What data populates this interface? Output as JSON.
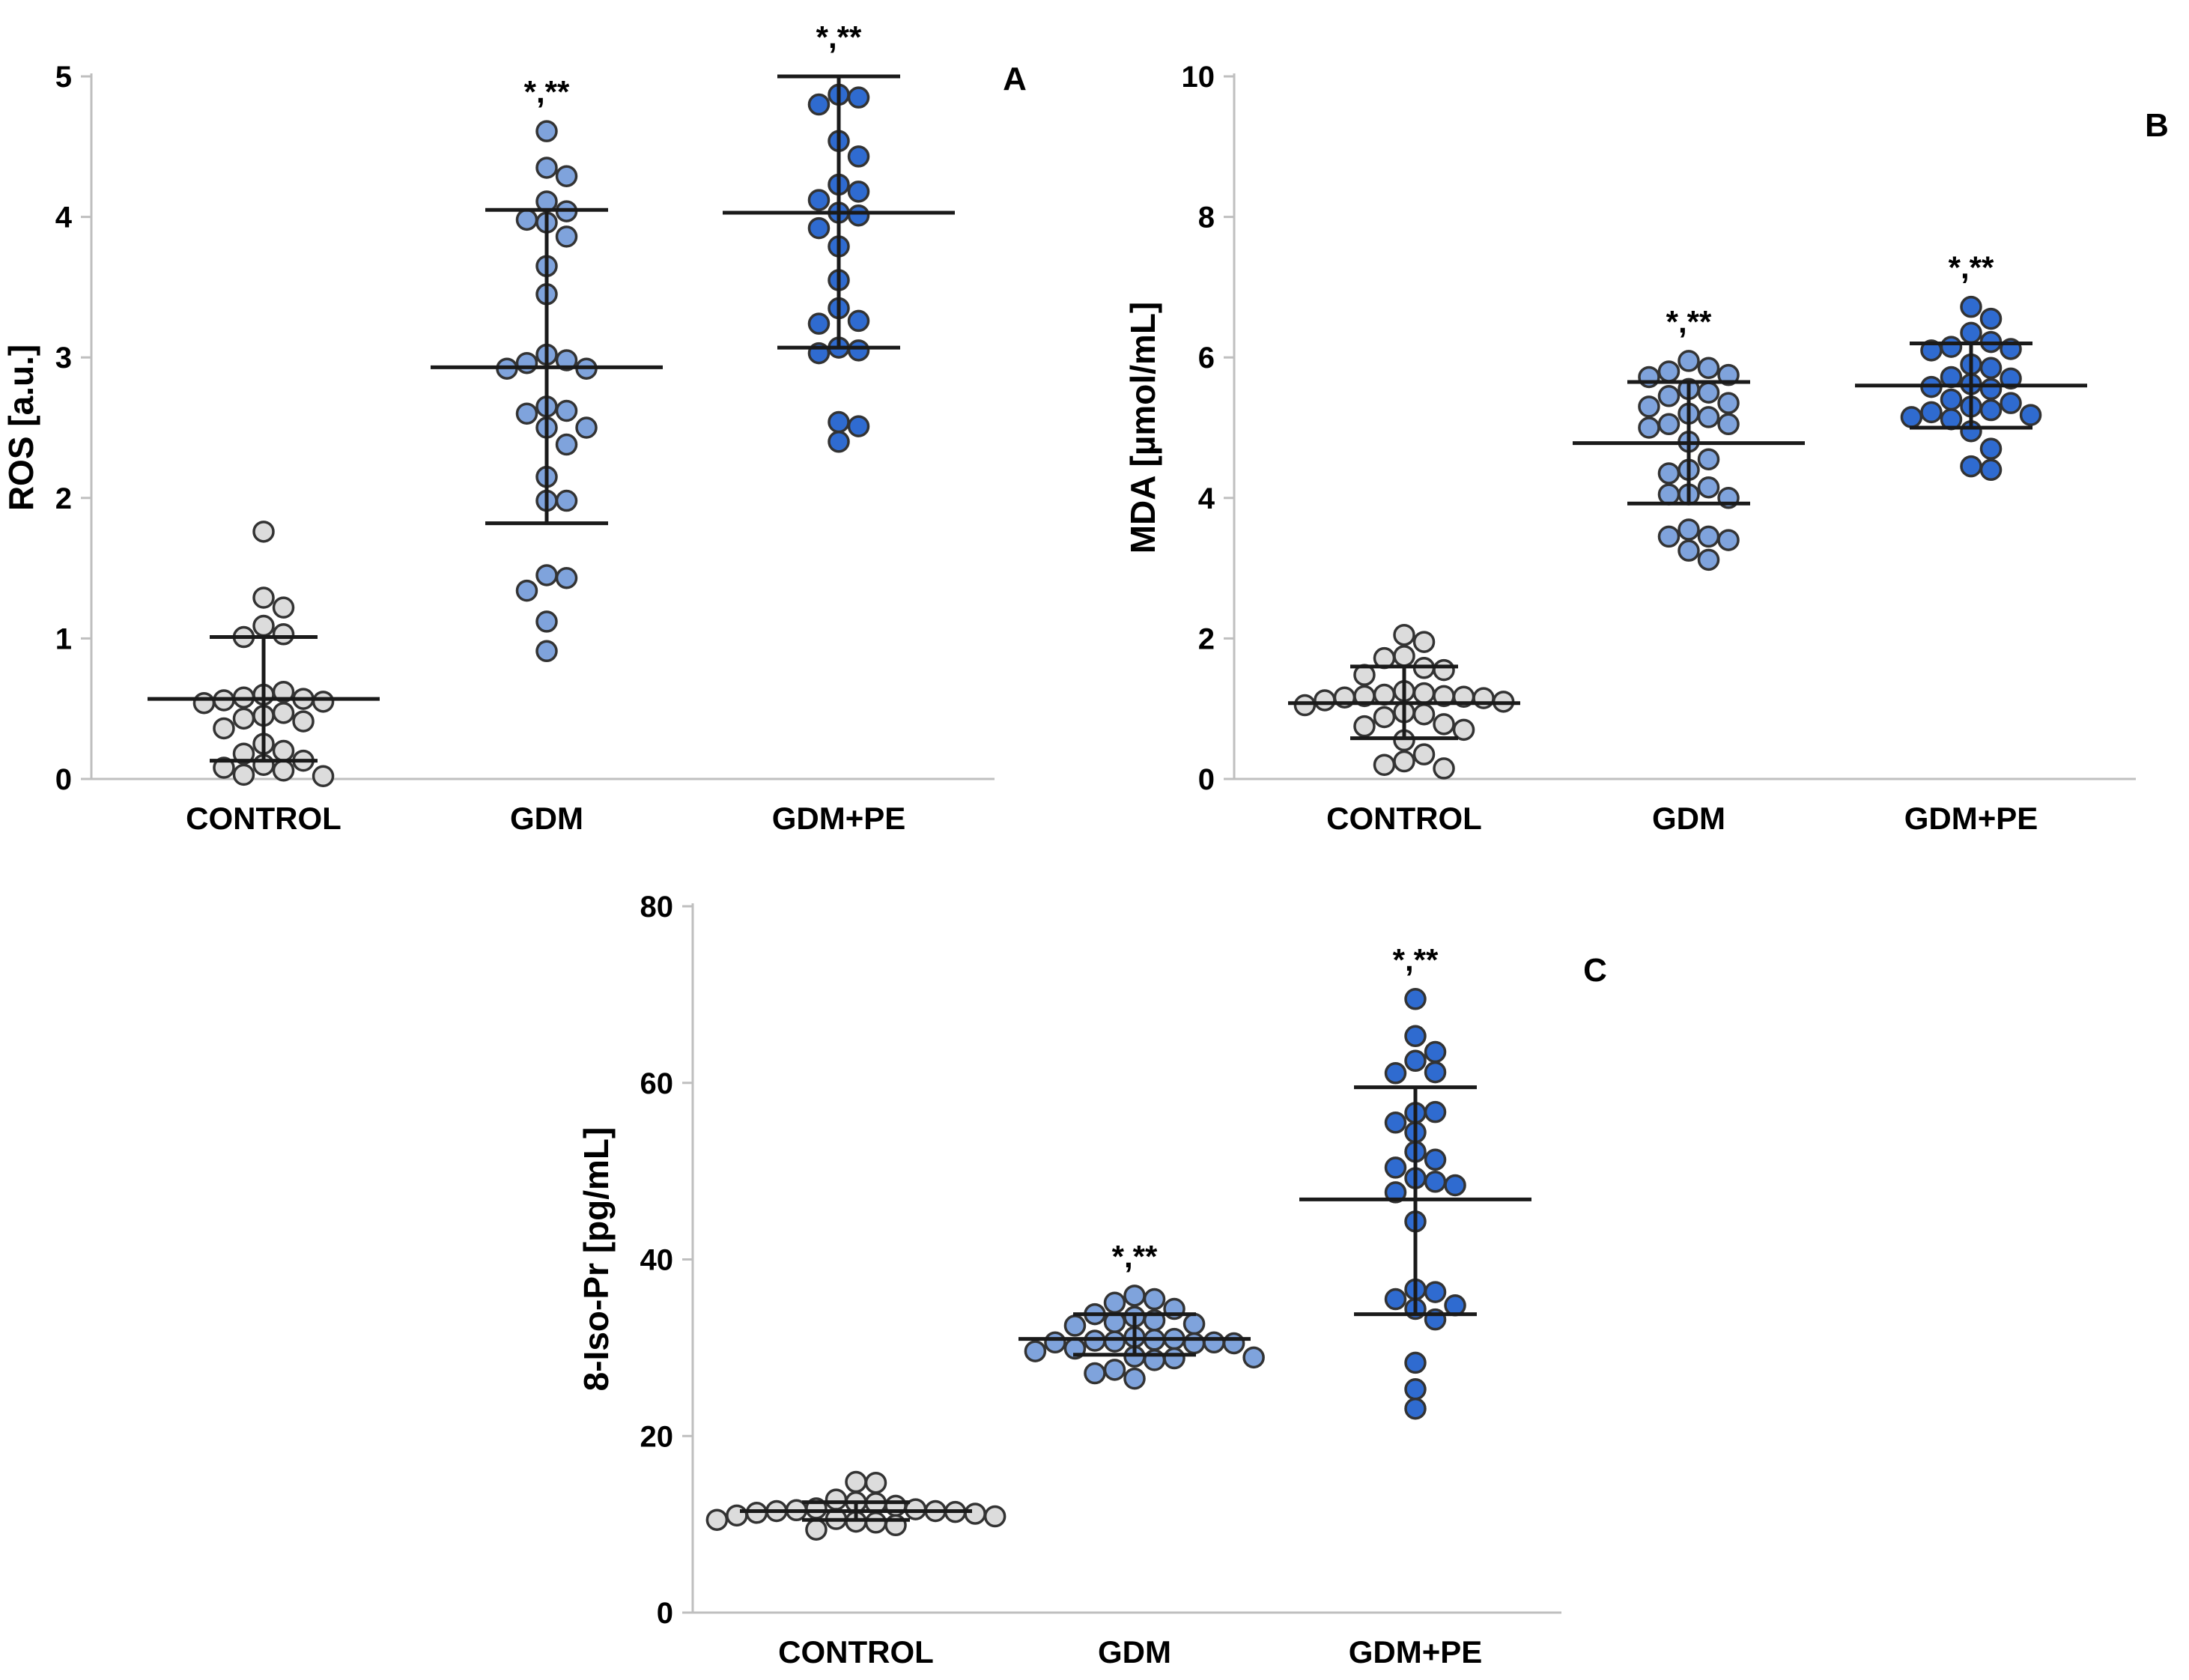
{
  "colors": {
    "control": "#dcdcdc",
    "gdm": "#7fa3dc",
    "gdm_pe": "#2f6bd0",
    "stat_line": "#1a1a1a",
    "axis": "#bfbfbf"
  },
  "chart_data": [
    {
      "id": "A",
      "type": "scatter",
      "panel_label": "A",
      "ylabel": "ROS [a.u.]",
      "ylim": [
        0,
        5
      ],
      "yticks": [
        0,
        1,
        2,
        3,
        4,
        5
      ],
      "categories": [
        "CONTROL",
        "GDM",
        "GDM+PE"
      ],
      "series": [
        {
          "name": "CONTROL",
          "points": [
            1.76,
            1.29,
            1.22,
            1.09,
            1.03,
            1.01,
            0.6,
            0.62,
            0.58,
            0.57,
            0.56,
            0.55,
            0.54,
            0.47,
            0.45,
            0.43,
            0.41,
            0.36,
            0.25,
            0.2,
            0.18,
            0.13,
            0.1,
            0.08,
            0.06,
            0.03,
            0.02
          ],
          "median": 0.57,
          "lower": 0.13,
          "upper": 1.01,
          "annotation": ""
        },
        {
          "name": "GDM",
          "points": [
            4.61,
            4.35,
            4.29,
            4.11,
            4.04,
            3.98,
            3.96,
            3.86,
            3.65,
            3.45,
            3.02,
            2.98,
            2.96,
            2.92,
            2.92,
            2.65,
            2.62,
            2.6,
            2.5,
            2.5,
            2.38,
            2.15,
            1.98,
            1.98,
            1.45,
            1.43,
            1.34,
            1.12,
            0.91
          ],
          "median": 2.93,
          "lower": 1.82,
          "upper": 4.05,
          "annotation": "*,**"
        },
        {
          "name": "GDM+PE",
          "points": [
            4.87,
            4.85,
            4.8,
            4.54,
            4.43,
            4.23,
            4.18,
            4.12,
            4.03,
            4.01,
            3.92,
            3.79,
            3.55,
            3.35,
            3.26,
            3.24,
            3.07,
            3.05,
            3.03,
            2.54,
            2.51,
            2.4
          ],
          "median": 4.03,
          "lower": 3.07,
          "upper": 5.0,
          "annotation": "*,**"
        }
      ]
    },
    {
      "id": "B",
      "type": "scatter",
      "panel_label": "B",
      "ylabel": "MDA [µmol/mL]",
      "ylim": [
        0,
        10
      ],
      "yticks": [
        0,
        2,
        4,
        6,
        8,
        10
      ],
      "categories": [
        "CONTROL",
        "GDM",
        "GDM+PE"
      ],
      "series": [
        {
          "name": "CONTROL",
          "points": [
            2.05,
            1.95,
            1.75,
            1.72,
            1.58,
            1.55,
            1.48,
            1.25,
            1.22,
            1.2,
            1.18,
            1.18,
            1.17,
            1.16,
            1.15,
            1.12,
            1.1,
            1.05,
            0.95,
            0.92,
            0.88,
            0.78,
            0.75,
            0.7,
            0.55,
            0.35,
            0.25,
            0.2,
            0.15
          ],
          "median": 1.08,
          "lower": 0.58,
          "upper": 1.6,
          "annotation": ""
        },
        {
          "name": "GDM",
          "points": [
            5.95,
            5.85,
            5.8,
            5.75,
            5.72,
            5.55,
            5.5,
            5.45,
            5.35,
            5.3,
            5.2,
            5.15,
            5.05,
            5.05,
            5.0,
            4.8,
            4.55,
            4.4,
            4.35,
            4.15,
            4.05,
            4.05,
            4.0,
            3.55,
            3.45,
            3.45,
            3.4,
            3.25,
            3.12
          ],
          "median": 4.78,
          "lower": 3.92,
          "upper": 5.65,
          "annotation": "*,**"
        },
        {
          "name": "GDM+PE",
          "points": [
            6.72,
            6.55,
            6.35,
            6.22,
            6.15,
            6.12,
            6.1,
            5.9,
            5.85,
            5.72,
            5.7,
            5.62,
            5.58,
            5.55,
            5.4,
            5.35,
            5.3,
            5.25,
            5.22,
            5.18,
            5.15,
            5.12,
            4.95,
            4.7,
            4.45,
            4.4
          ],
          "median": 5.6,
          "lower": 5.0,
          "upper": 6.2,
          "annotation": "*,**"
        }
      ]
    },
    {
      "id": "C",
      "type": "scatter",
      "panel_label": "C",
      "ylabel": "8-Iso-Pr [pg/mL]",
      "ylim": [
        0,
        80
      ],
      "yticks": [
        0,
        20,
        40,
        60,
        80
      ],
      "categories": [
        "CONTROL",
        "GDM",
        "GDM+PE"
      ],
      "series": [
        {
          "name": "CONTROL",
          "points": [
            14.8,
            14.7,
            12.8,
            12.5,
            12.4,
            12.1,
            11.8,
            11.7,
            11.6,
            11.5,
            11.5,
            11.4,
            11.3,
            11.2,
            11.0,
            10.9,
            10.6,
            10.5,
            10.3,
            10.2,
            9.9,
            9.4
          ],
          "median": 11.5,
          "lower": 10.5,
          "upper": 12.5,
          "annotation": ""
        },
        {
          "name": "GDM",
          "points": [
            35.9,
            35.5,
            35.1,
            34.4,
            33.8,
            33.5,
            33.1,
            32.9,
            32.7,
            32.5,
            31.2,
            31.0,
            30.9,
            30.8,
            30.7,
            30.6,
            30.6,
            30.5,
            30.5,
            29.9,
            29.6,
            29.0,
            28.9,
            28.8,
            28.6,
            27.5,
            27.1,
            26.5
          ],
          "median": 31.0,
          "lower": 29.2,
          "upper": 33.8,
          "annotation": "*,**"
        },
        {
          "name": "GDM+PE",
          "points": [
            69.5,
            65.3,
            63.5,
            62.5,
            61.2,
            61.1,
            56.6,
            56.7,
            55.5,
            54.4,
            52.2,
            51.3,
            50.4,
            49.2,
            48.8,
            48.4,
            47.6,
            44.3,
            36.6,
            36.3,
            35.5,
            34.8,
            34.4,
            33.2,
            28.3,
            25.3,
            23.1
          ],
          "median": 46.8,
          "lower": 33.8,
          "upper": 59.5,
          "annotation": "*,**"
        }
      ]
    }
  ]
}
